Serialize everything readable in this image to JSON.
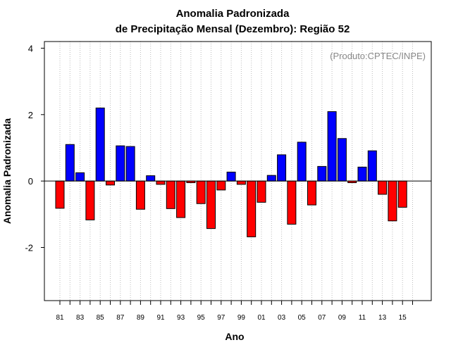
{
  "chart_data": {
    "type": "bar",
    "title": [
      "Anomalia Padronizada",
      "de Precipitação Mensal (Dezembro): Região 52"
    ],
    "xlabel": "Ano",
    "ylabel": "Anomalia Padronizada",
    "annotation": "(Produto:CPTEC/INPE)",
    "annotation_position": "top-right",
    "grid": "vertical dotted lines",
    "ylim": [
      -3.6,
      4.2
    ],
    "yticks": [
      -2,
      0,
      2,
      4
    ],
    "x": [
      "81",
      "82",
      "83",
      "84",
      "85",
      "86",
      "87",
      "88",
      "89",
      "90",
      "91",
      "92",
      "93",
      "94",
      "95",
      "96",
      "97",
      "98",
      "99",
      "00",
      "01",
      "02",
      "03",
      "04",
      "05",
      "06",
      "07",
      "08",
      "09",
      "10",
      "11",
      "12",
      "13",
      "14",
      "15"
    ],
    "xtick_labels": [
      "81",
      "83",
      "85",
      "87",
      "89",
      "91",
      "93",
      "95",
      "97",
      "99",
      "01",
      "03",
      "05",
      "07",
      "09",
      "11",
      "13",
      "15"
    ],
    "values": [
      -0.82,
      1.1,
      0.25,
      -1.17,
      2.2,
      -0.12,
      1.06,
      1.04,
      -0.85,
      0.16,
      -0.1,
      -0.83,
      -1.1,
      -0.05,
      -0.68,
      -1.43,
      -0.27,
      0.27,
      -0.1,
      -1.68,
      -0.64,
      0.17,
      0.79,
      -1.3,
      1.17,
      -0.72,
      0.44,
      2.09,
      1.28,
      -0.05,
      0.42,
      0.91,
      -0.4,
      -1.2,
      -0.79
    ],
    "colors": {
      "positive": "#0000ff",
      "negative": "#ff0000",
      "bar_stroke": "#000000",
      "grid": "#bbbbbb",
      "zero_line": "#000000"
    }
  }
}
